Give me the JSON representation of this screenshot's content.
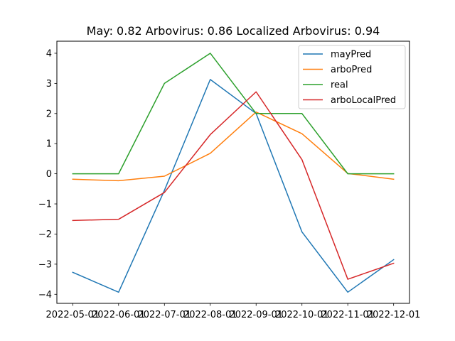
{
  "chart_data": {
    "type": "line",
    "title": "May: 0.82    Arbovirus: 0.86   Localized Arbovirus: 0.94",
    "xlabel": "",
    "ylabel": "",
    "x": [
      "2022-05-01",
      "2022-06-01",
      "2022-07-01",
      "2022-08-01",
      "2022-09-01",
      "2022-10-01",
      "2022-11-01",
      "2022-12-01"
    ],
    "ylim": [
      -4.3,
      4.4
    ],
    "yticks": [
      4,
      3,
      2,
      1,
      0,
      -1,
      -2,
      -3,
      -4
    ],
    "ytick_labels": [
      "4",
      "3",
      "2",
      "1",
      "0",
      "−1",
      "−2",
      "−3",
      "−4"
    ],
    "grid": false,
    "legend_position": "upper right",
    "series": [
      {
        "name": "mayPred",
        "color": "#1f77b4",
        "values": [
          -3.27,
          -3.93,
          -0.55,
          3.13,
          2.0,
          -1.93,
          -3.93,
          -2.85
        ]
      },
      {
        "name": "arboPred",
        "color": "#ff7f0e",
        "values": [
          -0.18,
          -0.23,
          -0.08,
          0.68,
          2.05,
          1.33,
          0.01,
          -0.18
        ]
      },
      {
        "name": "real",
        "color": "#2ca02c",
        "values": [
          0,
          0,
          3,
          4,
          2,
          2,
          0,
          0
        ]
      },
      {
        "name": "arboLocalPred",
        "color": "#d62728",
        "values": [
          -1.55,
          -1.51,
          -0.62,
          1.3,
          2.72,
          0.47,
          -3.5,
          -2.97
        ]
      }
    ]
  }
}
